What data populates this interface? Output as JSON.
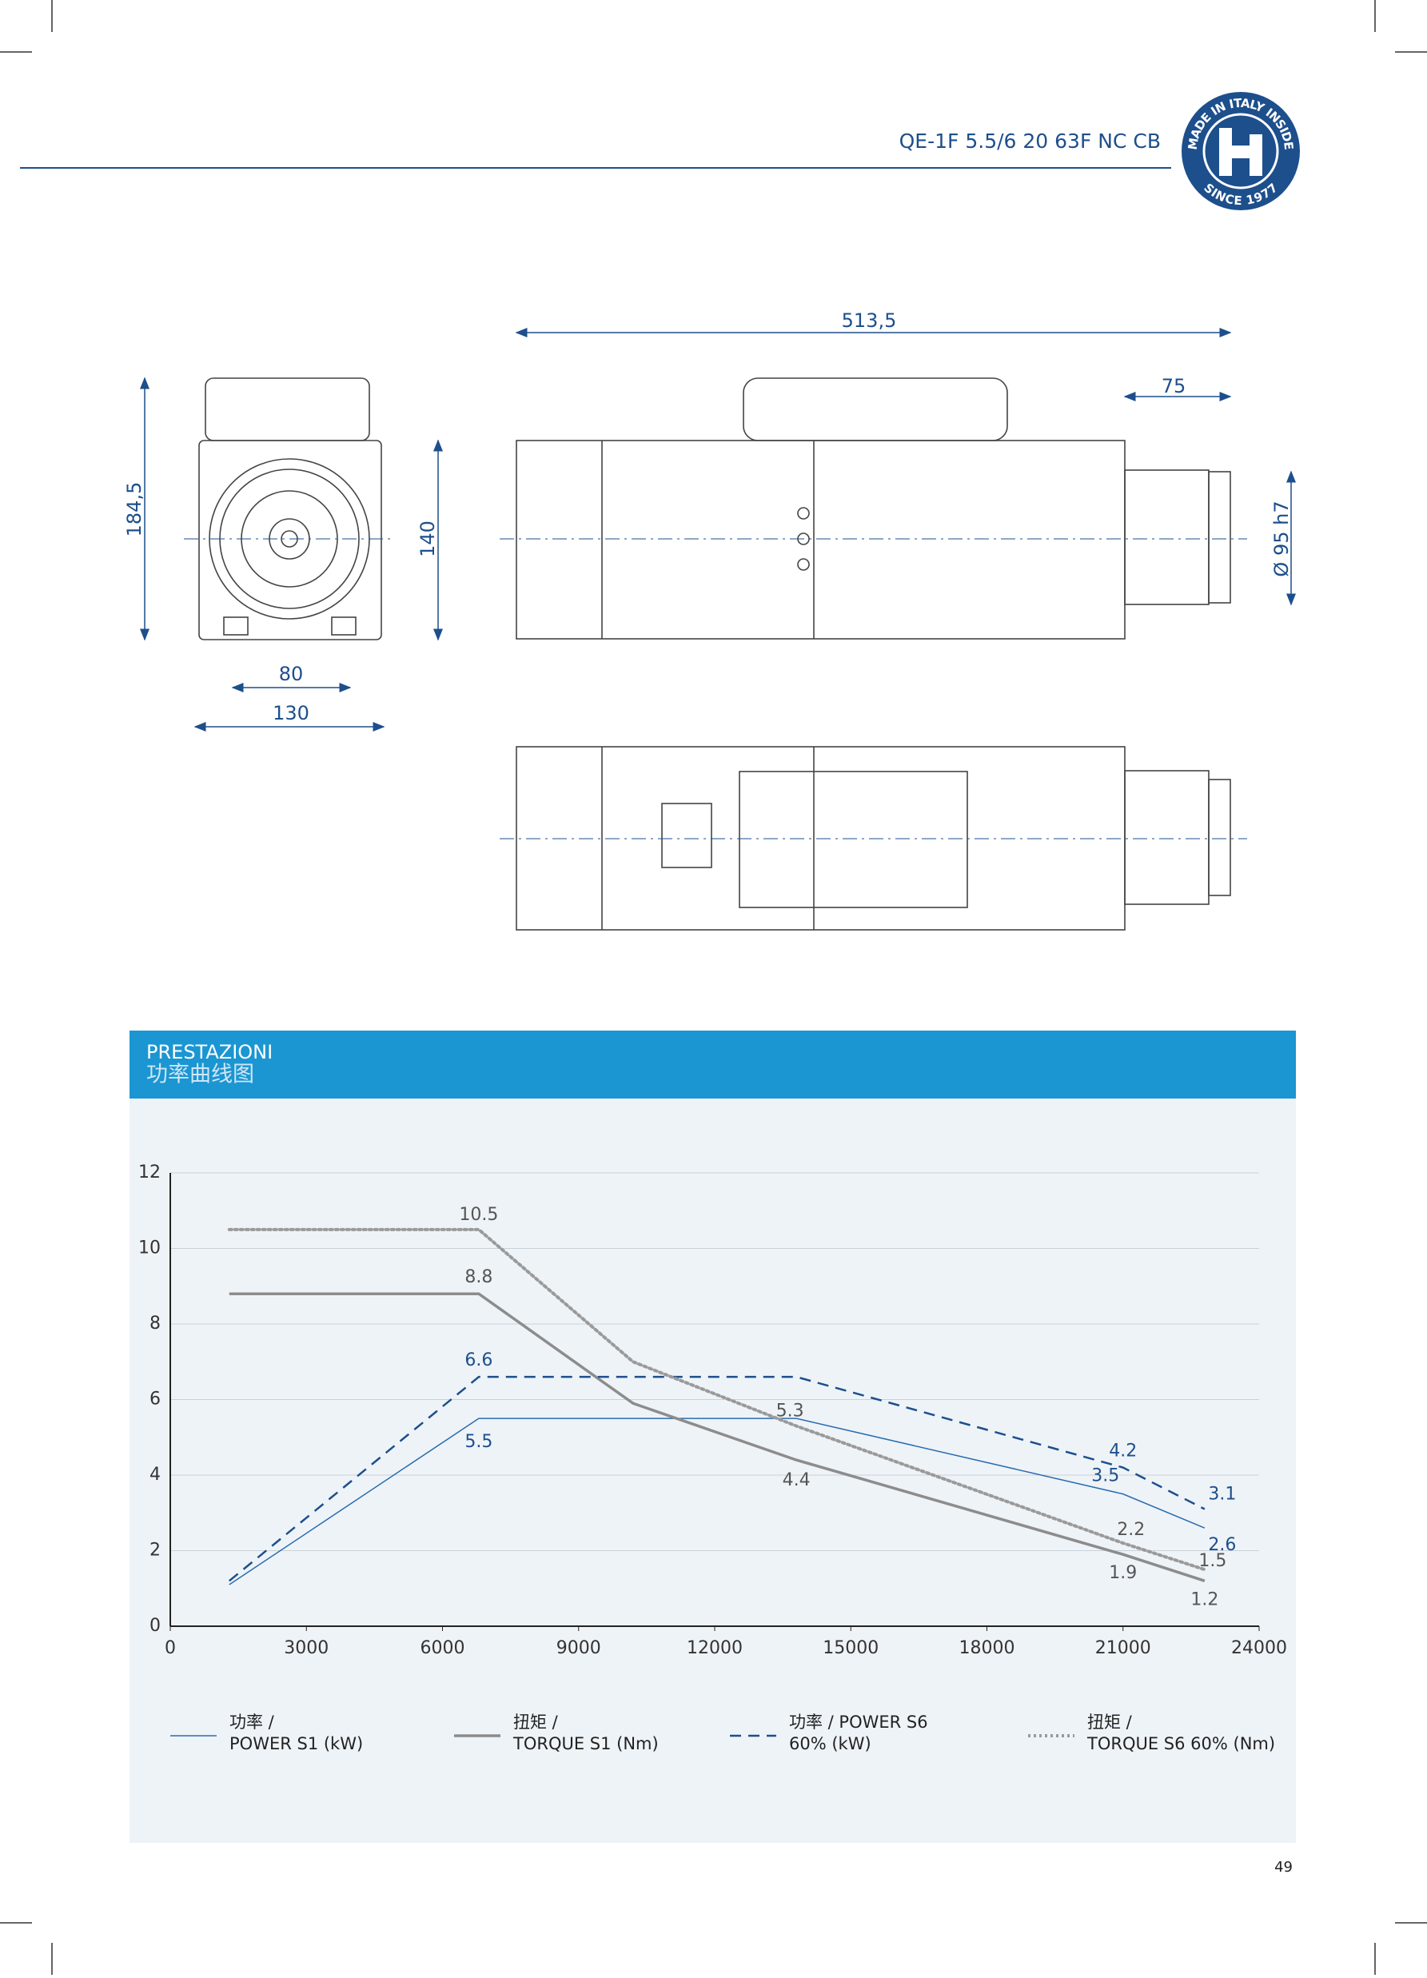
{
  "header": {
    "title": "QE-1F 5.5/6 20 63F NC CB",
    "logo_top": "MADE IN ITALY INSIDE",
    "logo_bottom": "SINCE 1977"
  },
  "drawing": {
    "height_total": "184,5",
    "height_body": "140",
    "width_mount": "80",
    "width_body": "130",
    "length_total": "513,5",
    "length_nose": "75",
    "diameter_nose": "Ø 95 h7"
  },
  "section": {
    "title": "PRESTAZIONI",
    "subtitle": "功率曲线图"
  },
  "chart_data": {
    "type": "line",
    "xlim": [
      0,
      24000
    ],
    "xticks": [
      0,
      3000,
      6000,
      9000,
      12000,
      15000,
      18000,
      21000,
      24000
    ],
    "ylim": [
      0,
      12
    ],
    "yticks": [
      0,
      2,
      4,
      6,
      8,
      10,
      12
    ],
    "grid": true,
    "series": [
      {
        "name": "功率 /\nPOWER S1 (kW)",
        "color": "#2a6cae",
        "style": "solid",
        "x": [
          1300,
          6800,
          13800,
          21000,
          22800
        ],
        "values": [
          1.1,
          5.5,
          5.5,
          3.5,
          2.6
        ],
        "value_labels": [
          null,
          "5.5",
          null,
          "3.5",
          "2.6"
        ]
      },
      {
        "name": "扭矩 /\nTORQUE S1 (Nm)",
        "color": "#8c8c8c",
        "style": "solid-thick",
        "x": [
          1300,
          6800,
          10200,
          13800,
          21000,
          22800
        ],
        "values": [
          8.8,
          8.8,
          5.9,
          4.4,
          1.9,
          1.2
        ],
        "value_labels": [
          null,
          "8.8",
          null,
          "4.4",
          "1.9",
          "1.2"
        ]
      },
      {
        "name": "功率 / POWER S6\n60% (kW)",
        "color": "#1d4f8c",
        "style": "dashed",
        "x": [
          1300,
          6800,
          13800,
          21000,
          22800
        ],
        "values": [
          1.2,
          6.6,
          6.6,
          4.2,
          3.1
        ],
        "value_labels": [
          null,
          "6.6",
          null,
          "4.2",
          "3.1"
        ]
      },
      {
        "name": "扭矩 /\nTORQUE S6 60% (Nm)",
        "color": "#9a9a9a",
        "style": "dotted",
        "x": [
          1300,
          6800,
          10200,
          13800,
          21000,
          22800
        ],
        "values": [
          10.5,
          10.5,
          7.0,
          5.3,
          2.2,
          1.5
        ],
        "value_labels": [
          null,
          "10.5",
          null,
          "5.3",
          "2.2",
          "1.5"
        ]
      }
    ]
  },
  "page_number": "49"
}
